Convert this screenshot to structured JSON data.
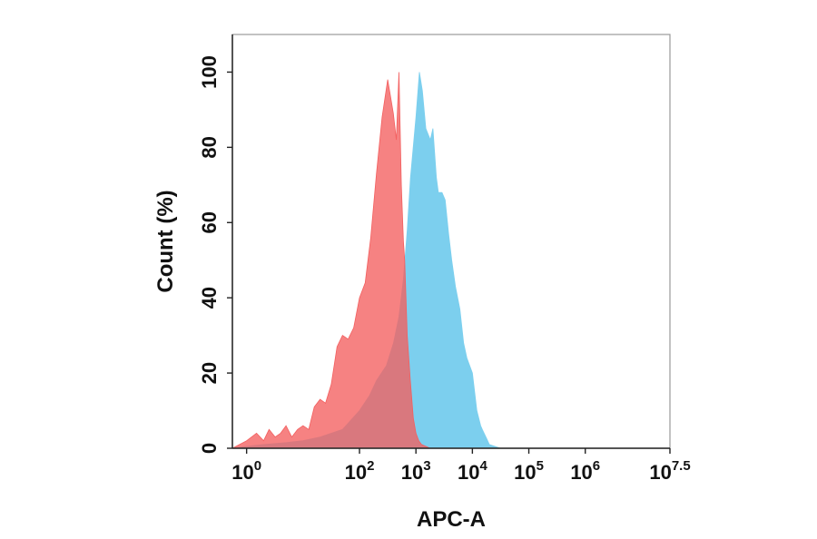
{
  "chart_data": {
    "type": "area",
    "title": "",
    "xlabel": "APC-A",
    "ylabel": "Count  (%)",
    "x_scale": "log10",
    "xlim": [
      0.56,
      31622777
    ],
    "ylim": [
      0,
      110
    ],
    "grid": false,
    "x_ticks": [
      {
        "base": "10",
        "exp": "0",
        "value": 1
      },
      {
        "base": "10",
        "exp": "2",
        "value": 100
      },
      {
        "base": "10",
        "exp": "3",
        "value": 1000
      },
      {
        "base": "10",
        "exp": "4",
        "value": 10000
      },
      {
        "base": "10",
        "exp": "5",
        "value": 100000
      },
      {
        "base": "10",
        "exp": "6",
        "value": 1000000
      },
      {
        "base": "10",
        "exp": "7.5",
        "value": 31622777
      }
    ],
    "y_ticks": [
      {
        "label": "0",
        "value": 0
      },
      {
        "label": "20",
        "value": 20
      },
      {
        "label": "40",
        "value": 40
      },
      {
        "label": "60",
        "value": 60
      },
      {
        "label": "80",
        "value": 80
      },
      {
        "label": "100",
        "value": 100
      }
    ],
    "series": [
      {
        "color": "#7ccfee",
        "x": [
          0.56,
          1.0,
          2.0,
          5.0,
          10,
          20,
          50,
          100,
          150,
          200,
          300,
          400,
          500,
          600,
          700,
          800,
          1000,
          1150,
          1300,
          1500,
          1800,
          2000,
          2300,
          2500,
          2900,
          3300,
          3800,
          4300,
          5000,
          6000,
          7000,
          8000,
          10000,
          12000,
          14000,
          15000,
          18000,
          20000,
          25000,
          31623
        ],
        "y": [
          0,
          0.5,
          1,
          1.5,
          2,
          3,
          5,
          10,
          14,
          18,
          22,
          28,
          35,
          45,
          58,
          72,
          88,
          100,
          95,
          85,
          82,
          85,
          72,
          68,
          68,
          66,
          57,
          50,
          43,
          37,
          28,
          24,
          20,
          10,
          6,
          5,
          2.5,
          1,
          0.5,
          0
        ]
      },
      {
        "color": "#f35f5f",
        "x": [
          0.56,
          1.0,
          1.5,
          2.0,
          2.5,
          3.2,
          4.0,
          5.0,
          6.3,
          8.0,
          10,
          12.6,
          15.8,
          20,
          25,
          31.6,
          40,
          50,
          63,
          79,
          100,
          126,
          158,
          200,
          251,
          316,
          398,
          450,
          501,
          550,
          600,
          631,
          700,
          794,
          900,
          1000,
          1122,
          1259,
          1500,
          1778
        ],
        "y": [
          0,
          2,
          4,
          2,
          5,
          3,
          4,
          6,
          3,
          5,
          6,
          5,
          11,
          13,
          12,
          17,
          27,
          30,
          29,
          32,
          40,
          44,
          56,
          73,
          88,
          98,
          89,
          82,
          100,
          70,
          55,
          50,
          30,
          18,
          8,
          4,
          2,
          1,
          0.5,
          0
        ]
      }
    ]
  }
}
